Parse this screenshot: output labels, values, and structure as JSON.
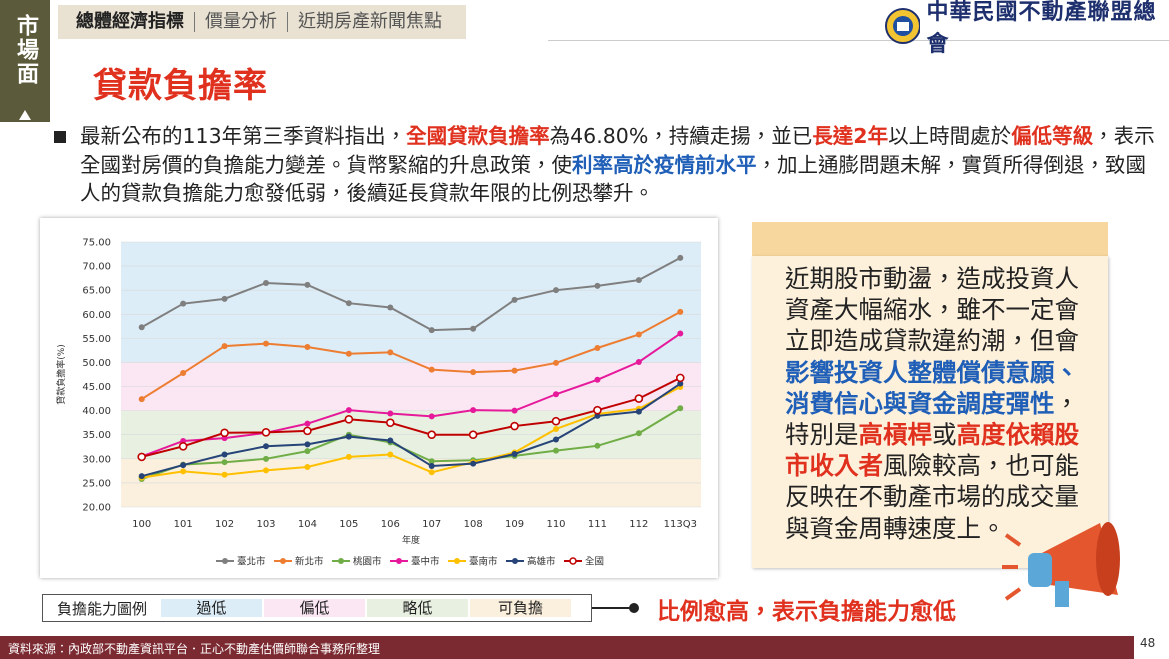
{
  "sidebar": {
    "label": "市場面"
  },
  "tabs": [
    "總體經濟指標",
    "價量分析",
    "近期房產新聞焦點"
  ],
  "logo": {
    "text": "中華民國不動產聯盟總會"
  },
  "title": "貸款負擔率",
  "paragraph": {
    "runs": [
      {
        "text": "最新公布的113年第三季資料指出，"
      },
      {
        "text": "全國貸款負擔率",
        "color": "#e0301e"
      },
      {
        "text": "為46.80%，持續走揚，並已"
      },
      {
        "text": "長達2年",
        "color": "#e0301e"
      },
      {
        "text": "以上時間處於"
      },
      {
        "text": "偏低等級",
        "color": "#e0301e"
      },
      {
        "text": "，表示全國對房價的負擔能力變差。貨幣緊縮的升息政策，使"
      },
      {
        "text": "利率高於疫情前水平",
        "color": "#1f5fb8"
      },
      {
        "text": "，加上通膨問題未解，實質所得倒退，致國人的貸款負擔能力愈發低弱，後續延長貸款年限的比例恐攀升。"
      }
    ]
  },
  "side_box": {
    "runs": [
      {
        "text": "近期股市動盪，造成投資人資產大幅縮水，雖不一定會立即造成貸款違約潮，但會"
      },
      {
        "text": "影響投資人整體償債意願、消費信心與資金調度彈性",
        "color": "#1f5fb8"
      },
      {
        "text": "，特別是"
      },
      {
        "text": "高槓桿",
        "color": "#e0301e"
      },
      {
        "text": "或"
      },
      {
        "text": "高度依賴股市收入者",
        "color": "#e0301e"
      },
      {
        "text": "風險較高，也可能反映在不動產市場的成交量與資金周轉速度上。"
      }
    ]
  },
  "chart_data": {
    "type": "line",
    "y_label": "貸款負擔率(%)",
    "x_label": "年度",
    "categories": [
      "100",
      "101",
      "102",
      "103",
      "104",
      "105",
      "106",
      "107",
      "108",
      "109",
      "110",
      "111",
      "112",
      "113Q3"
    ],
    "ylim": [
      20,
      75
    ],
    "yticks": [
      {
        "value": 20,
        "label": "20.00"
      },
      {
        "value": 25,
        "label": "25.00"
      },
      {
        "value": 30,
        "label": "30.00"
      },
      {
        "value": 35,
        "label": "35.00"
      },
      {
        "value": 40,
        "label": "40.00"
      },
      {
        "value": 45,
        "label": "45.00"
      },
      {
        "value": 50,
        "label": "50.00"
      },
      {
        "value": 55,
        "label": "55.00"
      },
      {
        "value": 60,
        "label": "60.00"
      },
      {
        "value": 65,
        "label": "65.00"
      },
      {
        "value": 70,
        "label": "70.00"
      },
      {
        "value": 75,
        "label": "75.00"
      }
    ],
    "band_legend_title": "負擔能力圖例",
    "bands": [
      {
        "name": "過低",
        "from": 50,
        "to": 75,
        "color": "#dcedf8"
      },
      {
        "name": "偏低",
        "from": 40,
        "to": 50,
        "color": "#fbe6f4"
      },
      {
        "name": "略低",
        "from": 30,
        "to": 40,
        "color": "#e8f1e1"
      },
      {
        "name": "可負擔",
        "from": 20,
        "to": 30,
        "color": "#fbf0dd"
      }
    ],
    "series": [
      {
        "name": "臺北市",
        "color": "#7f7f7f",
        "values": [
          57.3,
          62.2,
          63.2,
          66.5,
          66.1,
          62.3,
          61.4,
          56.7,
          57.0,
          63.0,
          65.0,
          65.9,
          67.1,
          71.7
        ]
      },
      {
        "name": "新北市",
        "color": "#ed7d31",
        "values": [
          42.4,
          47.8,
          53.4,
          53.9,
          53.2,
          51.8,
          52.1,
          48.5,
          48.0,
          48.3,
          49.9,
          53.0,
          55.8,
          60.5
        ]
      },
      {
        "name": "桃園市",
        "color": "#70ad47",
        "values": [
          25.8,
          28.8,
          29.3,
          30.0,
          31.6,
          35.0,
          33.4,
          29.5,
          29.7,
          30.6,
          31.7,
          32.7,
          35.3,
          40.5
        ]
      },
      {
        "name": "臺中市",
        "color": "#e6199b",
        "values": [
          30.5,
          33.7,
          34.3,
          35.4,
          37.3,
          40.1,
          39.4,
          38.8,
          40.1,
          40.0,
          43.4,
          46.4,
          50.1,
          56.0
        ]
      },
      {
        "name": "臺南市",
        "color": "#ffc000",
        "values": [
          26.1,
          27.4,
          26.7,
          27.6,
          28.3,
          30.4,
          30.9,
          27.2,
          29.3,
          31.3,
          36.2,
          39.3,
          40.4,
          44.9
        ]
      },
      {
        "name": "高雄市",
        "color": "#264478",
        "values": [
          26.4,
          28.7,
          30.9,
          32.6,
          33.0,
          34.6,
          33.8,
          28.5,
          29.0,
          31.0,
          34.0,
          38.9,
          39.8,
          45.6
        ]
      },
      {
        "name": "全國",
        "color": "#c00000",
        "marker": "open-circle",
        "values": [
          30.4,
          32.6,
          35.4,
          35.5,
          35.8,
          38.2,
          37.5,
          35.0,
          35.0,
          36.8,
          37.8,
          40.1,
          42.5,
          46.8
        ]
      }
    ]
  },
  "callout": "比例愈高，表示負擔能力愈低",
  "footer": {
    "source": "資料來源：內政部不動產資訊平台．正心不動產估價師聯合事務所整理",
    "page": 48
  }
}
